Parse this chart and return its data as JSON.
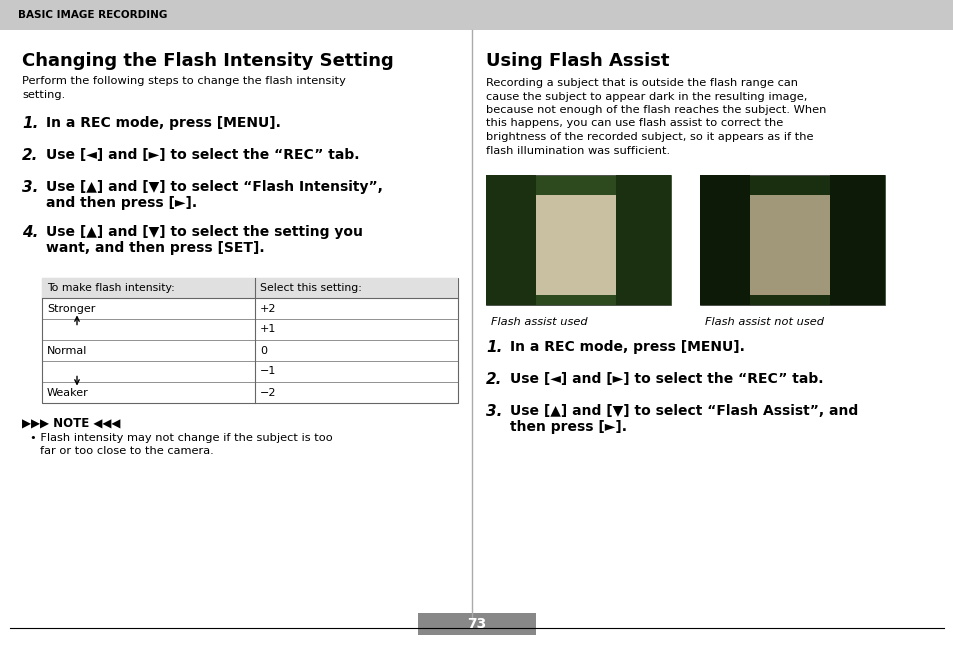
{
  "page_bg": "#ffffff",
  "header_bg": "#c8c8c8",
  "header_text": "BASIC IMAGE RECORDING",
  "header_text_color": "#000000",
  "page_number": "73",
  "page_number_bg": "#888888",
  "left_section": {
    "title": "Changing the Flash Intensity Setting",
    "intro_line1": "Perform the following steps to change the flash intensity",
    "intro_line2": "setting.",
    "steps": [
      {
        "num": "1.",
        "text": "In a REC mode, press [MENU]."
      },
      {
        "num": "2.",
        "text": "Use [◄] and [►] to select the “REC” tab."
      },
      {
        "num": "3.",
        "text_line1": "Use [▲] and [▼] to select “Flash Intensity”,",
        "text_line2": "and then press [►]."
      },
      {
        "num": "4.",
        "text_line1": "Use [▲] and [▼] to select the setting you",
        "text_line2": "want, and then press [SET]."
      }
    ],
    "table": {
      "col1_header": "To make flash intensity:",
      "col2_header": "Select this setting:",
      "rows": [
        {
          "col1": "Stronger",
          "col2": "+2",
          "arrow": "none"
        },
        {
          "col1": "",
          "col2": "+1",
          "arrow": "up"
        },
        {
          "col1": "Normal",
          "col2": "0",
          "arrow": "none"
        },
        {
          "col1": "",
          "col2": "−1",
          "arrow": "down"
        },
        {
          "col1": "Weaker",
          "col2": "−2",
          "arrow": "none"
        }
      ]
    },
    "note_text_line1": "Flash intensity may not change if the subject is too",
    "note_text_line2": "far or too close to the camera."
  },
  "right_section": {
    "title": "Using Flash Assist",
    "intro_lines": [
      "Recording a subject that is outside the flash range can",
      "cause the subject to appear dark in the resulting image,",
      "because not enough of the flash reaches the subject. When",
      "this happens, you can use flash assist to correct the",
      "brightness of the recorded subject, so it appears as if the",
      "flash illumination was sufficient."
    ],
    "img1_caption": "Flash assist used",
    "img2_caption": "Flash assist not used",
    "steps": [
      {
        "num": "1.",
        "text": "In a REC mode, press [MENU]."
      },
      {
        "num": "2.",
        "text": "Use [◄] and [►] to select the “REC” tab."
      },
      {
        "num": "3.",
        "text_line1": "Use [▲] and [▼] to select “Flash Assist”, and",
        "text_line2": "then press [►]."
      }
    ]
  }
}
